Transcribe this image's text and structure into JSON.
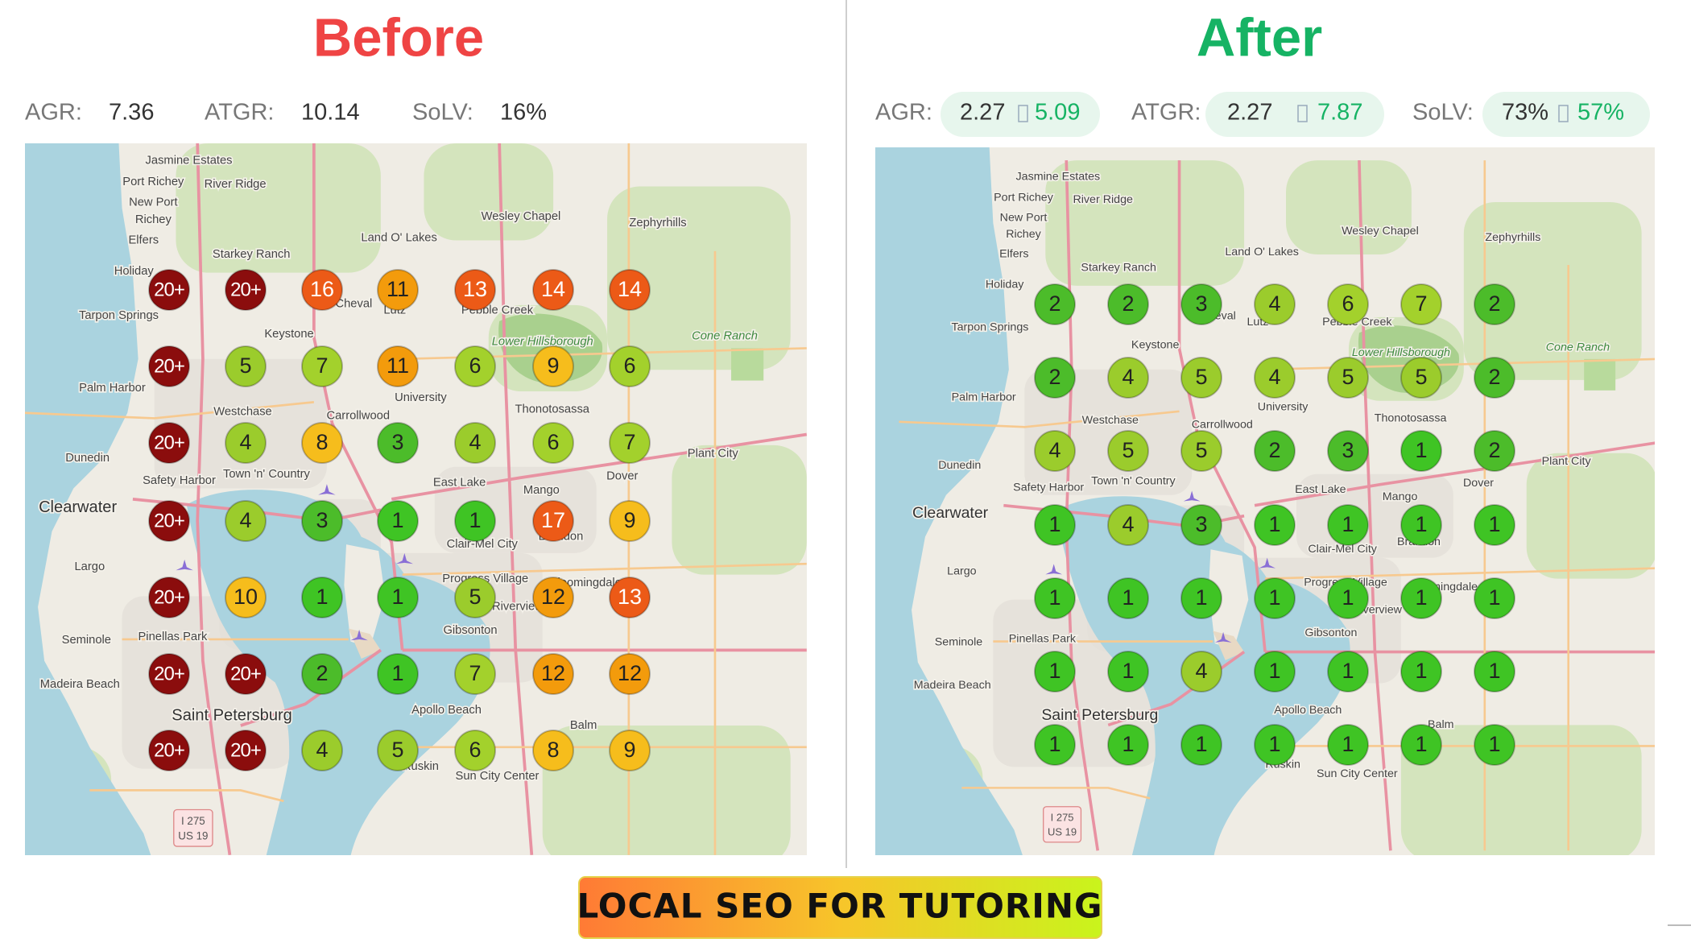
{
  "before": {
    "title": "Before",
    "metrics": [
      {
        "label": "AGR:",
        "value": 7.36
      },
      {
        "label": "ATGR:",
        "value": 10.14
      },
      {
        "label": "SoLV:",
        "value": "16%"
      }
    ],
    "grid": [
      [
        "20+",
        "20+",
        16,
        11,
        13,
        14,
        14
      ],
      [
        "20+",
        5,
        7,
        11,
        6,
        9,
        6
      ],
      [
        "20+",
        4,
        8,
        3,
        4,
        6,
        7
      ],
      [
        "20+",
        4,
        3,
        1,
        1,
        17,
        9
      ],
      [
        "20+",
        10,
        1,
        1,
        5,
        12,
        13
      ],
      [
        "20+",
        "20+",
        2,
        1,
        7,
        12,
        12
      ],
      [
        "20+",
        "20+",
        4,
        5,
        6,
        8,
        9
      ]
    ]
  },
  "after": {
    "title": "After",
    "metrics": [
      {
        "label": "AGR:",
        "from": 2.27,
        "to": 5.09
      },
      {
        "label": "ATGR:",
        "from": 2.27,
        "to": 7.87
      },
      {
        "label": "SoLV:",
        "from": "73%",
        "to": "57%"
      }
    ],
    "grid": [
      [
        2,
        2,
        3,
        4,
        6,
        7,
        2
      ],
      [
        2,
        4,
        5,
        4,
        5,
        5,
        2
      ],
      [
        4,
        5,
        5,
        2,
        3,
        1,
        2
      ],
      [
        1,
        4,
        3,
        1,
        1,
        1,
        1
      ],
      [
        1,
        1,
        1,
        1,
        1,
        1,
        1
      ],
      [
        1,
        1,
        4,
        1,
        1,
        1,
        1
      ],
      [
        1,
        1,
        1,
        1,
        1,
        1,
        1
      ]
    ]
  },
  "map_places": [
    "Jasmine Estates",
    "Port Richey",
    "River Ridge",
    "New Port",
    "Richey",
    "Elfers",
    "Starkey Ranch",
    "Land O' Lakes",
    "Wesley Chapel",
    "Zephyrhills",
    "Holiday",
    "Tarpon Springs",
    "Keystone",
    "Pebble Creek",
    "Lutz",
    "Cheval",
    "Cone Ranch",
    "Palm Harbor",
    "Westchase",
    "Carrollwood",
    "University",
    "Thonotosassa",
    "Dunedin",
    "Town 'n' Country",
    "Safety Harbor",
    "East Lake",
    "Mango",
    "Dover",
    "Plant City",
    "Clearwater",
    "Clair-Mel City",
    "Brandon",
    "Largo",
    "Progress Village",
    "Riverview",
    "Bloomingdale",
    "Gibsonton",
    "Seminole",
    "Pinellas Park",
    "Madeira Beach",
    "Saint Petersburg",
    "Apollo Beach",
    "Balm",
    "Ruskin",
    "Sun City Center",
    "Lower Hillsborough"
  ],
  "map_shield": [
    "I 275",
    "US 19"
  ],
  "banner": "LOCAL SEO FOR TUTORING"
}
